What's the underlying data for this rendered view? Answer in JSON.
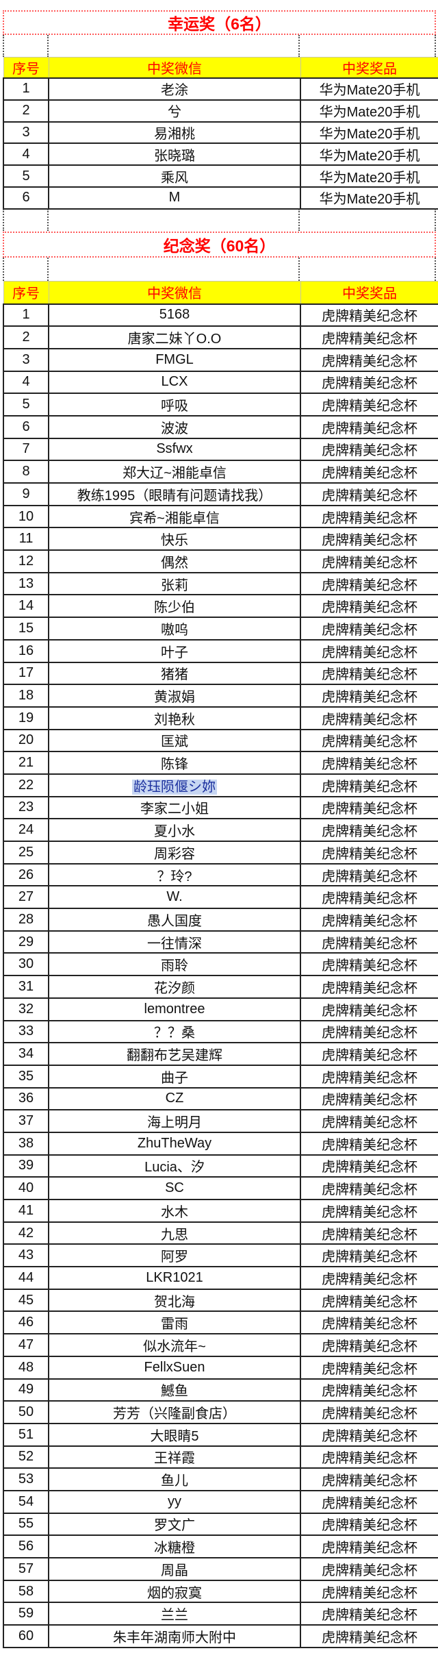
{
  "lucky": {
    "title": "幸运奖（6名）",
    "headers": [
      "序号",
      "中奖微信",
      "中奖奖品"
    ],
    "rows": [
      [
        "1",
        "老涂",
        "华为Mate20手机"
      ],
      [
        "2",
        "兮",
        "华为Mate20手机"
      ],
      [
        "3",
        "易湘桃",
        "华为Mate20手机"
      ],
      [
        "4",
        "张晓璐",
        "华为Mate20手机"
      ],
      [
        "5",
        "乘风",
        "华为Mate20手机"
      ],
      [
        "6",
        "M",
        "华为Mate20手机"
      ]
    ]
  },
  "souvenir": {
    "title": "纪念奖（60名）",
    "headers": [
      "序号",
      "中奖微信",
      "中奖奖品"
    ],
    "prize": "虎牌精美纪念杯",
    "highlight_color": "#c7d6f2",
    "highlighted_row": 22,
    "names": [
      "5168",
      "唐家二妹丫O.O",
      "FMGL",
      "LCX",
      "呼吸",
      "波波",
      "Ssfwx",
      "郑大辽~湘能卓信",
      "教练1995（眼睛有问题请找我）",
      "宾希~湘能卓信",
      "快乐",
      "偶然",
      "张莉",
      "陈少伯",
      "嗷呜",
      "叶子",
      "猪猪",
      "黄淑娟",
      "刘艳秋",
      "匡斌",
      "陈锋",
      "龄珏陨偃シ妳",
      "李家二小姐",
      "夏小水",
      "周彩容",
      "？玲?",
      "W.",
      "愚人国度",
      "一往情深",
      "雨聆",
      "花汐颜",
      "lemontree",
      "？？桑",
      "翻翻布艺吴建辉",
      "曲子",
      "CZ",
      "海上明月",
      "ZhuTheWay",
      "Lucia、汐",
      "SC",
      "水木",
      "九思",
      "阿罗",
      "LKR1021",
      "贺北海",
      "雷雨",
      "似水流年~",
      "FellxSuen",
      "鱤鱼",
      "芳芳（兴隆副食店）",
      "大眼睛5",
      "王祥霞",
      "鱼儿",
      "yy",
      "罗文广",
      "冰糖橙",
      "周晶",
      "烟的寂寞",
      "兰兰",
      "朱丰年湖南师大附中"
    ]
  },
  "colors": {
    "title_red": "#ff0000",
    "header_bg": "#ffff00"
  }
}
